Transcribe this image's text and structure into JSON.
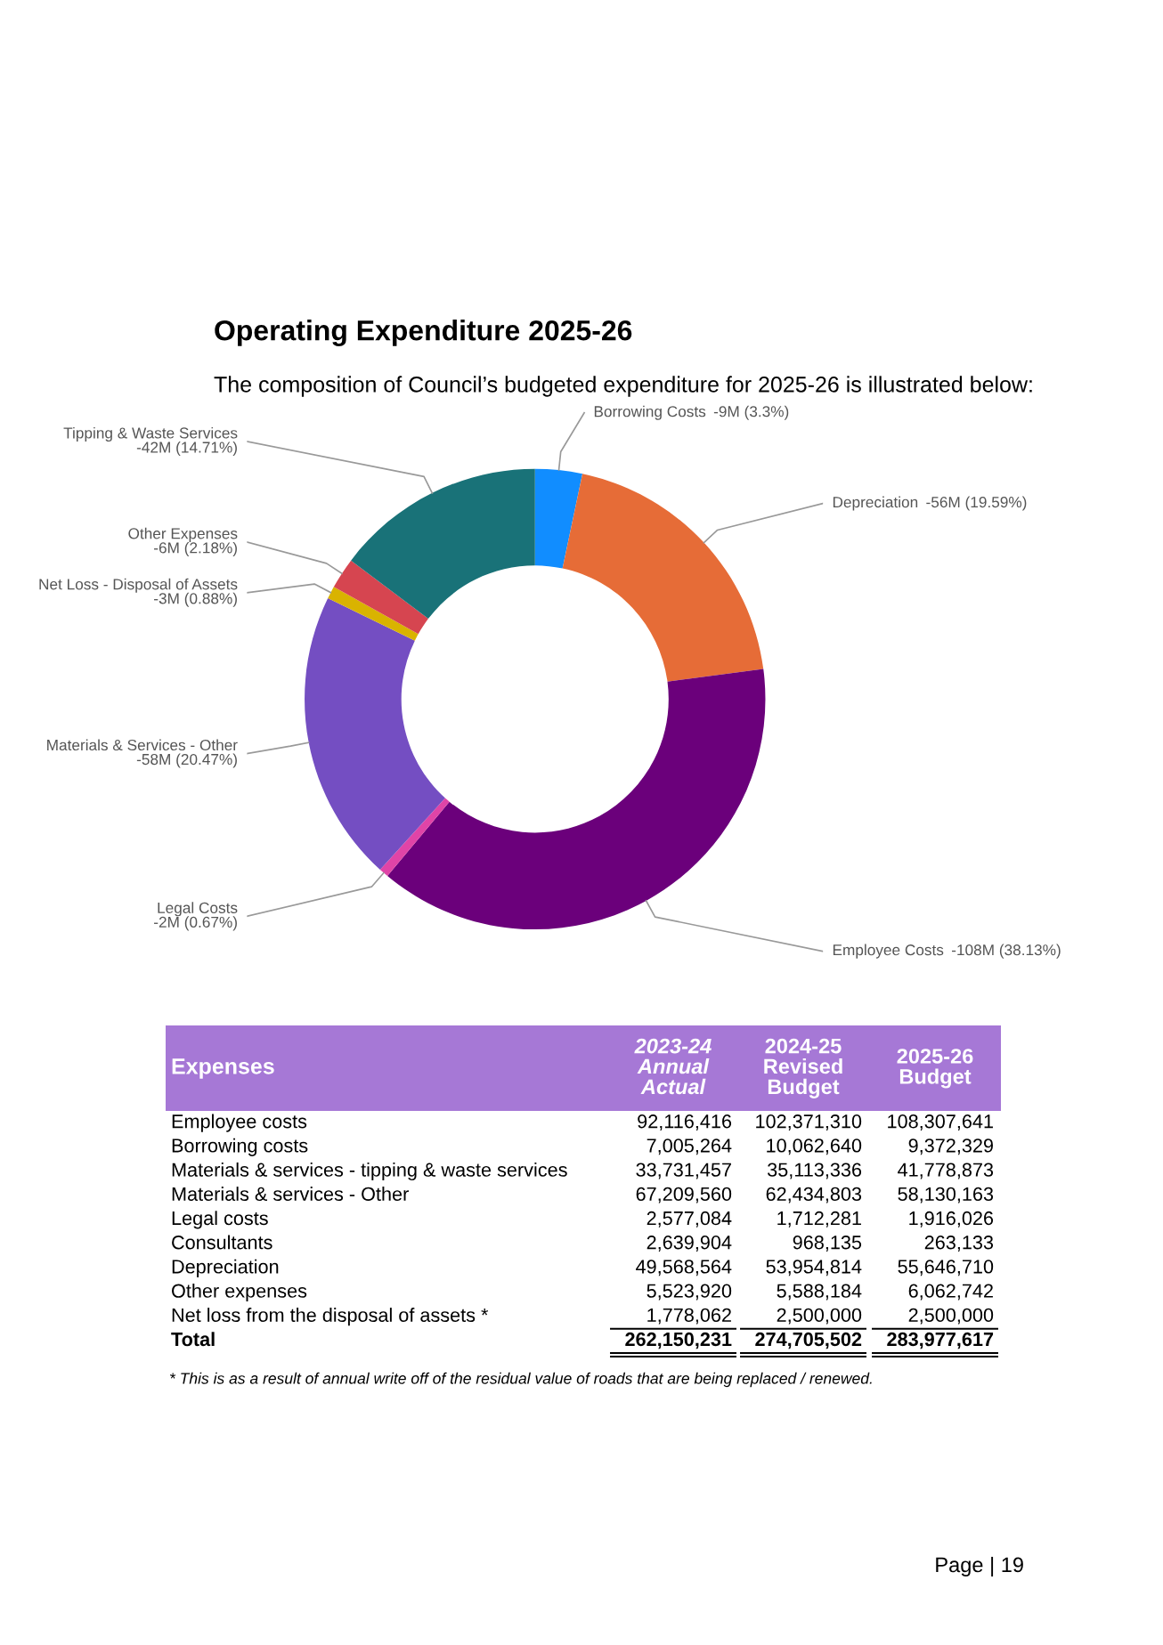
{
  "chart_data": [
    {
      "type": "donut",
      "title": "Operating Expenditure 2025-26",
      "subtitle": "The composition of Council’s budgeted expenditure for 2025-26 is illustrated below:",
      "categories": [
        "Borrowing Costs",
        "Depreciation",
        "Employee Costs",
        "Legal Costs",
        "Materials & Services - Other",
        "Net Loss - Disposal of Assets",
        "Other Expenses",
        "Tipping & Waste Services"
      ],
      "values": [
        3.3,
        19.59,
        38.13,
        0.67,
        20.47,
        0.88,
        2.18,
        14.71
      ],
      "value_labels": [
        "-9M (3.3%)",
        "-56M (19.59%)",
        "-108M (38.13%)",
        "-2M (0.67%)",
        "-58M (20.47%)",
        "-3M (0.88%)",
        "-6M (2.18%)",
        "-42M (14.71%)"
      ],
      "colors": [
        "#118dff",
        "#e66c37",
        "#6b007b",
        "#e044a7",
        "#744ec2",
        "#d9b300",
        "#d64550",
        "#197278"
      ]
    },
    {
      "type": "other",
      "title": "Expenses",
      "categories": [
        "Employee costs",
        "Borrowing costs",
        "Materials & services - tipping & waste services",
        "Materials & services - Other",
        "Legal costs",
        "Consultants",
        "Depreciation",
        "Other expenses",
        "Net loss from the disposal of assets *",
        "Total"
      ],
      "series": [
        {
          "name": "2023-24\nAnnual\nActual",
          "values": [
            92116416,
            7005264,
            33731457,
            67209560,
            2577084,
            2639904,
            49568564,
            5523920,
            1778062,
            262150231
          ],
          "value_labels": [
            "92,116,416",
            "7,005,264",
            "33,731,457",
            "67,209,560",
            "2,577,084",
            "2,639,904",
            "49,568,564",
            "5,523,920",
            "1,778,062",
            "262,150,231"
          ]
        },
        {
          "name": "2024-25\nRevised\nBudget",
          "values": [
            102371310,
            10062640,
            35113336,
            62434803,
            1712281,
            968135,
            53954814,
            5588184,
            2500000,
            274705502
          ],
          "value_labels": [
            "102,371,310",
            "10,062,640",
            "35,113,336",
            "62,434,803",
            "1,712,281",
            "968,135",
            "53,954,814",
            "5,588,184",
            "2,500,000",
            "274,705,502"
          ]
        },
        {
          "name": "2025-26\nBudget",
          "values": [
            108307641,
            9372329,
            41778873,
            58130163,
            1916026,
            263133,
            55646710,
            6062742,
            2500000,
            283977617
          ],
          "value_labels": [
            "108,307,641",
            "9,372,329",
            "41,778,873",
            "58,130,163",
            "1,916,026",
            "263,133",
            "55,646,710",
            "6,062,742",
            "2,500,000",
            "283,977,617"
          ]
        }
      ],
      "data_labels": true,
      "annotations": [
        "* This is as a result of annual write off of the residual value of roads that are being replaced / renewed.",
        "Page | 19"
      ]
    }
  ]
}
